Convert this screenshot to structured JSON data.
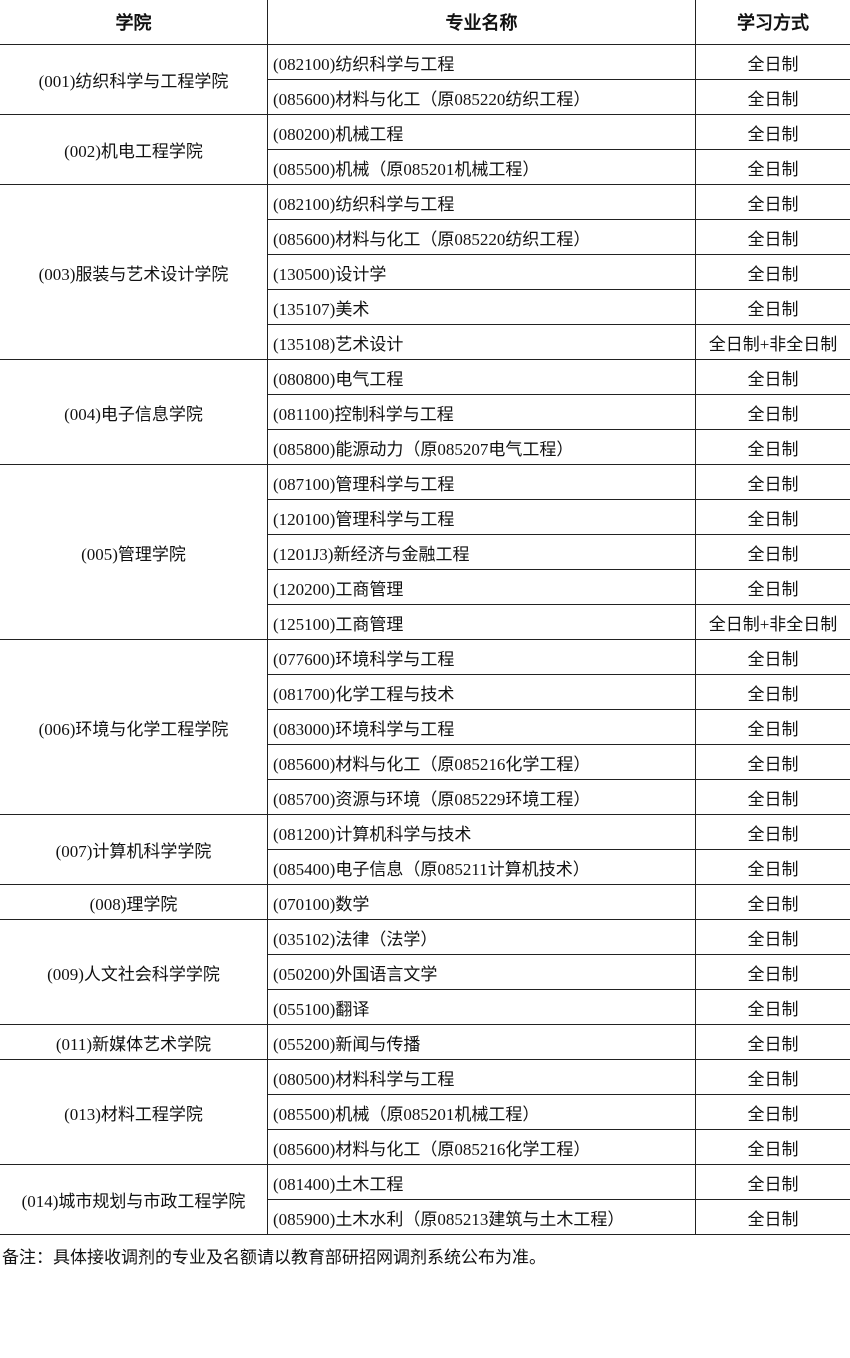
{
  "header": {
    "college": "学院",
    "major": "专业名称",
    "mode": "学习方式"
  },
  "groups": [
    {
      "college": "(001)纺织科学与工程学院",
      "rows": [
        {
          "major": "(082100)纺织科学与工程",
          "mode": "全日制"
        },
        {
          "major": "(085600)材料与化工（原085220纺织工程）",
          "mode": "全日制"
        }
      ]
    },
    {
      "college": "(002)机电工程学院",
      "rows": [
        {
          "major": "(080200)机械工程",
          "mode": "全日制"
        },
        {
          "major": "(085500)机械（原085201机械工程）",
          "mode": "全日制"
        }
      ]
    },
    {
      "college": "(003)服装与艺术设计学院",
      "rows": [
        {
          "major": "(082100)纺织科学与工程",
          "mode": "全日制"
        },
        {
          "major": "(085600)材料与化工（原085220纺织工程）",
          "mode": "全日制"
        },
        {
          "major": "(130500)设计学",
          "mode": "全日制"
        },
        {
          "major": "(135107)美术",
          "mode": "全日制"
        },
        {
          "major": "(135108)艺术设计",
          "mode": "全日制+非全日制"
        }
      ]
    },
    {
      "college": "(004)电子信息学院",
      "rows": [
        {
          "major": "(080800)电气工程",
          "mode": "全日制"
        },
        {
          "major": "(081100)控制科学与工程",
          "mode": "全日制"
        },
        {
          "major": "(085800)能源动力（原085207电气工程）",
          "mode": "全日制"
        }
      ]
    },
    {
      "college": "(005)管理学院",
      "rows": [
        {
          "major": "(087100)管理科学与工程",
          "mode": "全日制"
        },
        {
          "major": "(120100)管理科学与工程",
          "mode": "全日制"
        },
        {
          "major": "(1201J3)新经济与金融工程",
          "mode": "全日制"
        },
        {
          "major": "(120200)工商管理",
          "mode": "全日制"
        },
        {
          "major": "(125100)工商管理",
          "mode": "全日制+非全日制"
        }
      ]
    },
    {
      "college": "(006)环境与化学工程学院",
      "rows": [
        {
          "major": "(077600)环境科学与工程",
          "mode": "全日制"
        },
        {
          "major": "(081700)化学工程与技术",
          "mode": "全日制"
        },
        {
          "major": "(083000)环境科学与工程",
          "mode": "全日制"
        },
        {
          "major": "(085600)材料与化工（原085216化学工程）",
          "mode": "全日制"
        },
        {
          "major": "(085700)资源与环境（原085229环境工程）",
          "mode": "全日制"
        }
      ]
    },
    {
      "college": "(007)计算机科学学院",
      "rows": [
        {
          "major": "(081200)计算机科学与技术",
          "mode": "全日制"
        },
        {
          "major": "(085400)电子信息（原085211计算机技术）",
          "mode": "全日制"
        }
      ]
    },
    {
      "college": "(008)理学院",
      "rows": [
        {
          "major": "(070100)数学",
          "mode": "全日制"
        }
      ]
    },
    {
      "college": "(009)人文社会科学学院",
      "rows": [
        {
          "major": "(035102)法律（法学）",
          "mode": "全日制"
        },
        {
          "major": "(050200)外国语言文学",
          "mode": "全日制"
        },
        {
          "major": "(055100)翻译",
          "mode": "全日制"
        }
      ]
    },
    {
      "college": "(011)新媒体艺术学院",
      "rows": [
        {
          "major": "(055200)新闻与传播",
          "mode": "全日制"
        }
      ]
    },
    {
      "college": "(013)材料工程学院",
      "rows": [
        {
          "major": "(080500)材料科学与工程",
          "mode": "全日制"
        },
        {
          "major": "(085500)机械（原085201机械工程）",
          "mode": "全日制"
        },
        {
          "major": "(085600)材料与化工（原085216化学工程）",
          "mode": "全日制"
        }
      ]
    },
    {
      "college": "(014)城市规划与市政工程学院",
      "rows": [
        {
          "major": "(081400)土木工程",
          "mode": "全日制"
        },
        {
          "major": "(085900)土木水利（原085213建筑与土木工程）",
          "mode": "全日制"
        }
      ]
    }
  ],
  "note": "备注：具体接收调剂的专业及名额请以教育部研招网调剂系统公布为准。"
}
